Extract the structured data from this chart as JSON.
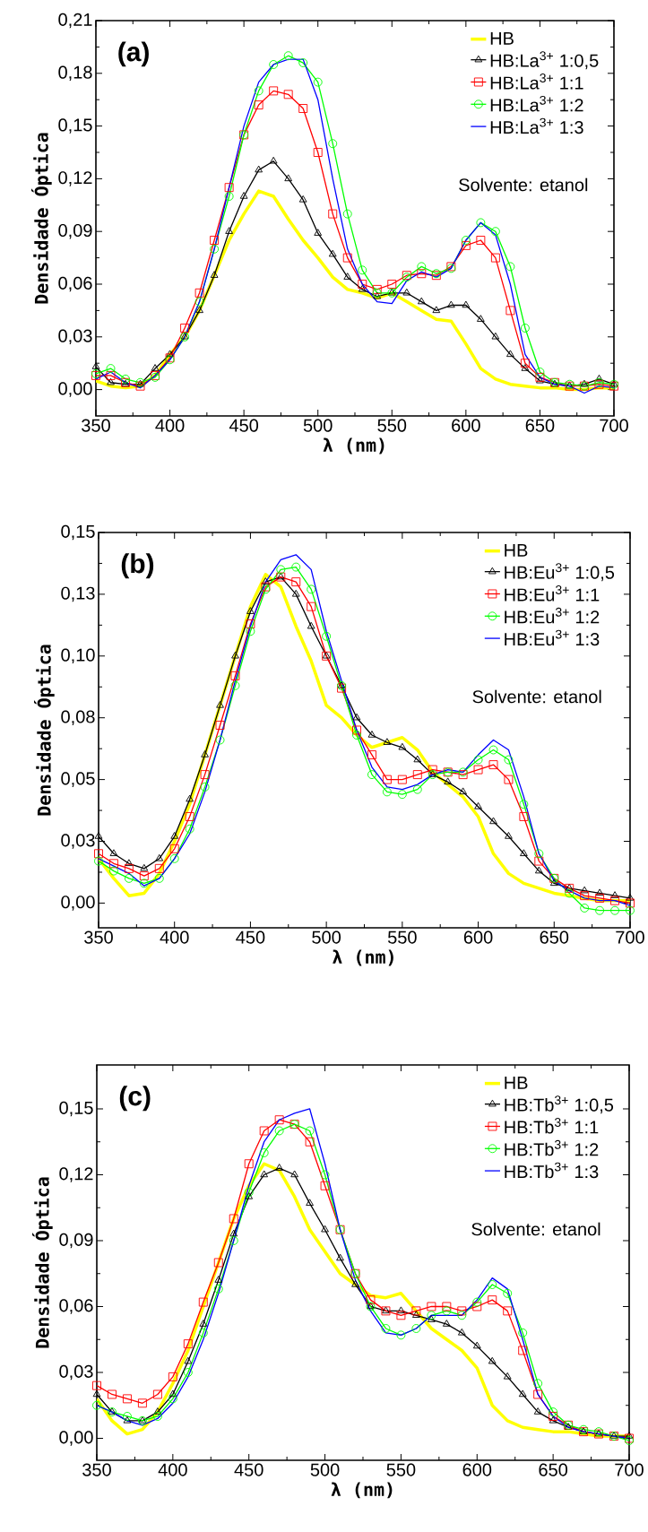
{
  "chart_data": [
    {
      "type": "line",
      "xlabel": "λ (nm)",
      "ylabel": "Densidade Óptica",
      "legend": "top right",
      "annotations": [
        "(a)",
        "Solvente: etanol"
      ],
      "x": [
        350,
        360,
        370,
        380,
        390,
        400,
        410,
        420,
        430,
        440,
        450,
        460,
        470,
        480,
        490,
        500,
        510,
        520,
        530,
        540,
        550,
        560,
        570,
        580,
        590,
        600,
        610,
        620,
        630,
        640,
        650,
        660,
        670,
        680,
        690,
        700
      ],
      "xlim": [
        350,
        700
      ],
      "xticks": [
        350,
        400,
        450,
        500,
        550,
        600,
        650,
        700
      ],
      "ylim": [
        -0.015,
        0.21
      ],
      "yticks": [
        {
          "value": 0,
          "label": "0,00"
        },
        {
          "value": 0.03,
          "label": "0,03"
        },
        {
          "value": 0.06,
          "label": "0,06"
        },
        {
          "value": 0.09,
          "label": "0,09"
        },
        {
          "value": 0.12,
          "label": "0,12"
        },
        {
          "value": 0.15,
          "label": "0,15"
        },
        {
          "value": 0.18,
          "label": "0,18"
        },
        {
          "value": 0.21,
          "label": "0,21"
        }
      ],
      "series": [
        {
          "name": "HB",
          "color": "#ffff00",
          "marker": "none",
          "values": [
            0.005,
            0.002,
            0.001,
            0.002,
            0.008,
            0.02,
            0.03,
            0.045,
            0.065,
            0.085,
            0.1,
            0.113,
            0.11,
            0.097,
            0.085,
            0.075,
            0.064,
            0.057,
            0.055,
            0.052,
            0.055,
            0.05,
            0.045,
            0.04,
            0.039,
            0.026,
            0.012,
            0.006,
            0.003,
            0.002,
            0.001,
            0.001,
            0,
            0,
            0.001,
            0.001
          ]
        },
        {
          "name": "HB:La$^{3+}$ 1:0,5",
          "color": "#000000",
          "marker": "triangle",
          "values": [
            0.013,
            0.004,
            0.003,
            0.003,
            0.012,
            0.02,
            0.03,
            0.045,
            0.065,
            0.09,
            0.11,
            0.125,
            0.13,
            0.12,
            0.108,
            0.089,
            0.077,
            0.064,
            0.057,
            0.053,
            0.055,
            0.055,
            0.05,
            0.045,
            0.048,
            0.048,
            0.04,
            0.03,
            0.02,
            0.012,
            0.005,
            0.003,
            0.002,
            0.003,
            0.006,
            0.003
          ]
        },
        {
          "name": "HB:La$^{3+}$ 1:1",
          "color": "#ff0000",
          "marker": "square",
          "values": [
            0.008,
            0.008,
            0.004,
            0.002,
            0.008,
            0.018,
            0.035,
            0.055,
            0.085,
            0.115,
            0.145,
            0.162,
            0.17,
            0.168,
            0.16,
            0.135,
            0.1,
            0.075,
            0.06,
            0.057,
            0.06,
            0.065,
            0.066,
            0.065,
            0.07,
            0.082,
            0.085,
            0.075,
            0.045,
            0.015,
            0.007,
            0.004,
            0.002,
            0.002,
            0.003,
            0.002
          ]
        },
        {
          "name": "HB:La$^{3+}$ 1:2",
          "color": "#00ff00",
          "marker": "circle",
          "values": [
            0.009,
            0.012,
            0.006,
            0.004,
            0.007,
            0.017,
            0.03,
            0.05,
            0.08,
            0.11,
            0.145,
            0.17,
            0.185,
            0.19,
            0.186,
            0.175,
            0.14,
            0.1,
            0.068,
            0.055,
            0.055,
            0.064,
            0.07,
            0.066,
            0.069,
            0.085,
            0.095,
            0.09,
            0.07,
            0.035,
            0.01,
            0.004,
            0.003,
            0.002,
            0.004,
            0.003
          ]
        },
        {
          "name": "HB:La$^{3+}$ 1:3",
          "color": "#0000ff",
          "marker": "none",
          "values": [
            0.006,
            0.01,
            0.004,
            0.001,
            0.008,
            0.017,
            0.03,
            0.05,
            0.08,
            0.115,
            0.15,
            0.175,
            0.185,
            0.188,
            0.188,
            0.165,
            0.12,
            0.08,
            0.06,
            0.05,
            0.049,
            0.062,
            0.067,
            0.064,
            0.069,
            0.085,
            0.095,
            0.088,
            0.06,
            0.02,
            0.007,
            0.003,
            0.002,
            -0.002,
            0.002,
            0.001
          ]
        }
      ]
    },
    {
      "type": "line",
      "xlabel": "λ (nm)",
      "ylabel": "Densidade Óptica",
      "legend": "top right",
      "annotations": [
        "(b)",
        "Solvente: etanol"
      ],
      "x": [
        350,
        360,
        370,
        380,
        390,
        400,
        410,
        420,
        430,
        440,
        450,
        460,
        470,
        480,
        490,
        500,
        510,
        520,
        530,
        540,
        550,
        560,
        570,
        580,
        590,
        600,
        610,
        620,
        630,
        640,
        650,
        660,
        670,
        680,
        690,
        700
      ],
      "xlim": [
        350,
        700
      ],
      "xticks": [
        350,
        400,
        450,
        500,
        550,
        600,
        650,
        700
      ],
      "ylim": [
        -0.01,
        0.15
      ],
      "yticks": [
        {
          "value": 0,
          "label": "0,00"
        },
        {
          "value": 0.025,
          "label": "0,03"
        },
        {
          "value": 0.05,
          "label": "0,05"
        },
        {
          "value": 0.075,
          "label": "0,08"
        },
        {
          "value": 0.1,
          "label": "0,10"
        },
        {
          "value": 0.125,
          "label": "0,13"
        },
        {
          "value": 0.15,
          "label": "0,15"
        }
      ],
      "series": [
        {
          "name": "HB",
          "color": "#ffff00",
          "marker": "none",
          "values": [
            0.018,
            0.01,
            0.003,
            0.004,
            0.012,
            0.025,
            0.04,
            0.06,
            0.08,
            0.1,
            0.12,
            0.133,
            0.128,
            0.112,
            0.098,
            0.08,
            0.075,
            0.068,
            0.063,
            0.065,
            0.067,
            0.062,
            0.053,
            0.048,
            0.043,
            0.035,
            0.02,
            0.012,
            0.008,
            0.006,
            0.004,
            0.003,
            0.002,
            0.001,
            0.001,
            0.001
          ]
        },
        {
          "name": "HB:Eu$^{3+}$ 1:0,5",
          "color": "#000000",
          "marker": "triangle",
          "values": [
            0.027,
            0.02,
            0.016,
            0.014,
            0.018,
            0.027,
            0.042,
            0.06,
            0.08,
            0.1,
            0.118,
            0.13,
            0.132,
            0.125,
            0.112,
            0.1,
            0.088,
            0.075,
            0.068,
            0.065,
            0.063,
            0.058,
            0.052,
            0.049,
            0.045,
            0.039,
            0.033,
            0.027,
            0.02,
            0.013,
            0.008,
            0.006,
            0.005,
            0.004,
            0.003,
            0.002
          ]
        },
        {
          "name": "HB:Eu$^{3+}$ 1:1",
          "color": "#ff0000",
          "marker": "square",
          "values": [
            0.02,
            0.016,
            0.014,
            0.011,
            0.014,
            0.022,
            0.035,
            0.052,
            0.072,
            0.092,
            0.113,
            0.128,
            0.132,
            0.13,
            0.12,
            0.1,
            0.087,
            0.07,
            0.06,
            0.05,
            0.05,
            0.052,
            0.054,
            0.053,
            0.052,
            0.054,
            0.056,
            0.05,
            0.035,
            0.017,
            0.01,
            0.006,
            0.003,
            0.002,
            0.001,
            0
          ]
        },
        {
          "name": "HB:Eu$^{3+}$ 1:2",
          "color": "#00ff00",
          "marker": "circle",
          "values": [
            0.017,
            0.013,
            0.01,
            0.008,
            0.01,
            0.018,
            0.03,
            0.047,
            0.066,
            0.088,
            0.11,
            0.127,
            0.135,
            0.136,
            0.127,
            0.108,
            0.088,
            0.068,
            0.052,
            0.045,
            0.044,
            0.046,
            0.052,
            0.053,
            0.053,
            0.058,
            0.062,
            0.058,
            0.04,
            0.02,
            0.01,
            0.004,
            -0.002,
            -0.003,
            -0.003,
            -0.003
          ]
        },
        {
          "name": "HB:Eu$^{3+}$ 1:3",
          "color": "#0000ff",
          "marker": "none",
          "values": [
            0.018,
            0.015,
            0.012,
            0.007,
            0.01,
            0.018,
            0.028,
            0.045,
            0.066,
            0.09,
            0.112,
            0.13,
            0.139,
            0.141,
            0.135,
            0.11,
            0.09,
            0.07,
            0.055,
            0.047,
            0.046,
            0.048,
            0.052,
            0.054,
            0.053,
            0.06,
            0.066,
            0.062,
            0.043,
            0.02,
            0.009,
            0.005,
            0.002,
            0.001,
            0.001,
            -0.001
          ]
        }
      ]
    },
    {
      "type": "line",
      "xlabel": "λ (nm)",
      "ylabel": "Densidade Óptica",
      "legend": "top right",
      "annotations": [
        "(c)",
        "Solvente: etanol"
      ],
      "x": [
        350,
        360,
        370,
        380,
        390,
        400,
        410,
        420,
        430,
        440,
        450,
        460,
        470,
        480,
        490,
        500,
        510,
        520,
        530,
        540,
        550,
        560,
        570,
        580,
        590,
        600,
        610,
        620,
        630,
        640,
        650,
        660,
        670,
        680,
        690,
        700
      ],
      "xlim": [
        350,
        700
      ],
      "xticks": [
        350,
        400,
        450,
        500,
        550,
        600,
        650,
        700
      ],
      "ylim": [
        -0.01,
        0.17
      ],
      "yticks": [
        {
          "value": 0,
          "label": "0,00"
        },
        {
          "value": 0.03,
          "label": "0,03"
        },
        {
          "value": 0.06,
          "label": "0,06"
        },
        {
          "value": 0.09,
          "label": "0,09"
        },
        {
          "value": 0.12,
          "label": "0,12"
        },
        {
          "value": 0.15,
          "label": "0,15"
        }
      ],
      "series": [
        {
          "name": "HB",
          "color": "#ffff00",
          "marker": "none",
          "values": [
            0.018,
            0.008,
            0.002,
            0.004,
            0.012,
            0.025,
            0.04,
            0.06,
            0.08,
            0.1,
            0.115,
            0.125,
            0.122,
            0.11,
            0.095,
            0.085,
            0.075,
            0.07,
            0.065,
            0.064,
            0.066,
            0.058,
            0.05,
            0.045,
            0.04,
            0.032,
            0.015,
            0.008,
            0.005,
            0.004,
            0.003,
            0.003,
            0.002,
            0.001,
            0.001,
            0.001
          ]
        },
        {
          "name": "HB:Tb$^{3+}$ 1:0,5",
          "color": "#000000",
          "marker": "triangle",
          "values": [
            0.02,
            0.012,
            0.008,
            0.008,
            0.012,
            0.02,
            0.035,
            0.052,
            0.072,
            0.093,
            0.11,
            0.12,
            0.123,
            0.12,
            0.107,
            0.095,
            0.082,
            0.07,
            0.06,
            0.058,
            0.058,
            0.056,
            0.054,
            0.052,
            0.048,
            0.042,
            0.035,
            0.028,
            0.02,
            0.012,
            0.008,
            0.005,
            0.003,
            0.002,
            0.001,
            0.001
          ]
        },
        {
          "name": "HB:Tb$^{3+}$ 1:1",
          "color": "#ff0000",
          "marker": "square",
          "values": [
            0.024,
            0.02,
            0.018,
            0.016,
            0.02,
            0.028,
            0.043,
            0.062,
            0.08,
            0.1,
            0.125,
            0.14,
            0.145,
            0.143,
            0.135,
            0.115,
            0.095,
            0.075,
            0.063,
            0.058,
            0.056,
            0.058,
            0.06,
            0.06,
            0.058,
            0.06,
            0.063,
            0.058,
            0.04,
            0.02,
            0.01,
            0.006,
            0.003,
            0.002,
            0.001,
            0
          ]
        },
        {
          "name": "HB:Tb$^{3+}$ 1:2",
          "color": "#00ff00",
          "marker": "circle",
          "values": [
            0.015,
            0.012,
            0.01,
            0.008,
            0.01,
            0.018,
            0.03,
            0.048,
            0.068,
            0.09,
            0.112,
            0.13,
            0.14,
            0.143,
            0.14,
            0.12,
            0.095,
            0.075,
            0.06,
            0.05,
            0.047,
            0.05,
            0.056,
            0.058,
            0.056,
            0.062,
            0.07,
            0.066,
            0.048,
            0.025,
            0.012,
            0.006,
            0.004,
            0.003,
            0.001,
            -0.001
          ]
        },
        {
          "name": "HB:Tb$^{3+}$ 1:3",
          "color": "#0000ff",
          "marker": "none",
          "values": [
            0.015,
            0.012,
            0.008,
            0.006,
            0.009,
            0.016,
            0.028,
            0.045,
            0.066,
            0.09,
            0.115,
            0.135,
            0.145,
            0.148,
            0.15,
            0.125,
            0.095,
            0.072,
            0.058,
            0.048,
            0.047,
            0.05,
            0.056,
            0.056,
            0.056,
            0.063,
            0.073,
            0.068,
            0.045,
            0.02,
            0.01,
            0.005,
            0.003,
            0.002,
            0.001,
            0
          ]
        }
      ]
    }
  ]
}
